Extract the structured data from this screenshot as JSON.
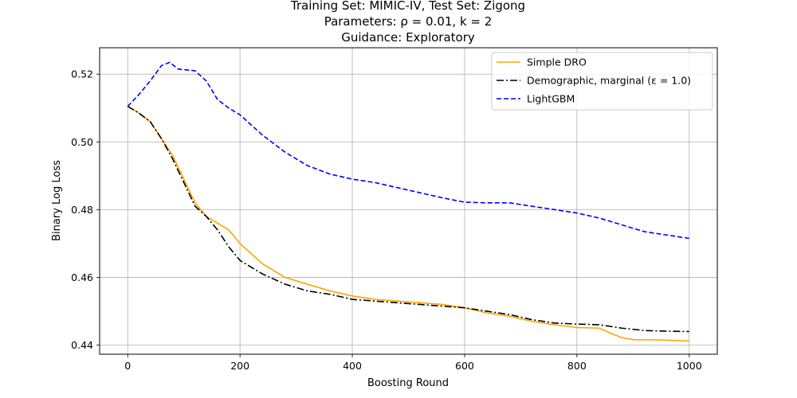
{
  "chart_data": {
    "type": "line",
    "title_lines": [
      "Training Set: MIMIC-IV, Test Set: Zigong",
      "Parameters: ρ = 0.01, k = 2",
      "Guidance: Exploratory"
    ],
    "xlabel": "Boosting Round",
    "ylabel": "Binary Log Loss",
    "xlim": [
      -50,
      1050
    ],
    "ylim": [
      0.4373,
      0.5278
    ],
    "xticks": [
      0,
      200,
      400,
      600,
      800,
      1000
    ],
    "yticks": [
      0.44,
      0.46,
      0.48,
      0.5,
      0.52
    ],
    "xtick_labels": [
      "0",
      "200",
      "400",
      "600",
      "800",
      "1000"
    ],
    "ytick_labels": [
      "0.44",
      "0.46",
      "0.48",
      "0.50",
      "0.52"
    ],
    "grid": true,
    "legend_position": "top-right",
    "series": [
      {
        "name": "Simple DRO",
        "color": "#ffa500",
        "dash": "solid",
        "points": [
          [
            0,
            0.5105
          ],
          [
            20,
            0.5085
          ],
          [
            40,
            0.506
          ],
          [
            60,
            0.501
          ],
          [
            80,
            0.496
          ],
          [
            100,
            0.489
          ],
          [
            120,
            0.482
          ],
          [
            140,
            0.478
          ],
          [
            160,
            0.476
          ],
          [
            180,
            0.474
          ],
          [
            200,
            0.47
          ],
          [
            240,
            0.464
          ],
          [
            280,
            0.46
          ],
          [
            320,
            0.458
          ],
          [
            360,
            0.456
          ],
          [
            400,
            0.4545
          ],
          [
            440,
            0.4535
          ],
          [
            480,
            0.453
          ],
          [
            520,
            0.4525
          ],
          [
            560,
            0.452
          ],
          [
            600,
            0.451
          ],
          [
            640,
            0.4495
          ],
          [
            680,
            0.4485
          ],
          [
            720,
            0.447
          ],
          [
            760,
            0.446
          ],
          [
            800,
            0.4452
          ],
          [
            840,
            0.445
          ],
          [
            860,
            0.4435
          ],
          [
            880,
            0.4422
          ],
          [
            900,
            0.4416
          ],
          [
            950,
            0.4415
          ],
          [
            1000,
            0.4412
          ]
        ]
      },
      {
        "name": "Demographic, marginal (ε = 1.0)",
        "color": "#000000",
        "dash": "dashdot",
        "points": [
          [
            0,
            0.5105
          ],
          [
            20,
            0.5085
          ],
          [
            40,
            0.506
          ],
          [
            60,
            0.501
          ],
          [
            80,
            0.495
          ],
          [
            100,
            0.488
          ],
          [
            120,
            0.481
          ],
          [
            140,
            0.478
          ],
          [
            160,
            0.474
          ],
          [
            180,
            0.469
          ],
          [
            200,
            0.465
          ],
          [
            240,
            0.461
          ],
          [
            280,
            0.458
          ],
          [
            320,
            0.456
          ],
          [
            360,
            0.455
          ],
          [
            400,
            0.4535
          ],
          [
            440,
            0.453
          ],
          [
            480,
            0.4525
          ],
          [
            520,
            0.452
          ],
          [
            560,
            0.4515
          ],
          [
            600,
            0.451
          ],
          [
            640,
            0.45
          ],
          [
            680,
            0.449
          ],
          [
            720,
            0.4475
          ],
          [
            760,
            0.4465
          ],
          [
            800,
            0.4462
          ],
          [
            840,
            0.446
          ],
          [
            880,
            0.445
          ],
          [
            920,
            0.4443
          ],
          [
            960,
            0.4441
          ],
          [
            1000,
            0.444
          ]
        ]
      },
      {
        "name": "LightGBM",
        "color": "#0000ff",
        "dash": "dashed",
        "points": [
          [
            0,
            0.5105
          ],
          [
            20,
            0.514
          ],
          [
            40,
            0.518
          ],
          [
            60,
            0.5225
          ],
          [
            75,
            0.5235
          ],
          [
            90,
            0.5215
          ],
          [
            120,
            0.521
          ],
          [
            140,
            0.518
          ],
          [
            160,
            0.5125
          ],
          [
            180,
            0.51
          ],
          [
            200,
            0.508
          ],
          [
            240,
            0.502
          ],
          [
            280,
            0.497
          ],
          [
            320,
            0.493
          ],
          [
            360,
            0.4905
          ],
          [
            400,
            0.489
          ],
          [
            440,
            0.488
          ],
          [
            480,
            0.4865
          ],
          [
            520,
            0.485
          ],
          [
            560,
            0.4835
          ],
          [
            600,
            0.4822
          ],
          [
            640,
            0.482
          ],
          [
            680,
            0.482
          ],
          [
            720,
            0.481
          ],
          [
            760,
            0.48
          ],
          [
            800,
            0.479
          ],
          [
            840,
            0.4775
          ],
          [
            880,
            0.4755
          ],
          [
            920,
            0.4735
          ],
          [
            960,
            0.4725
          ],
          [
            1000,
            0.4715
          ]
        ]
      }
    ]
  }
}
